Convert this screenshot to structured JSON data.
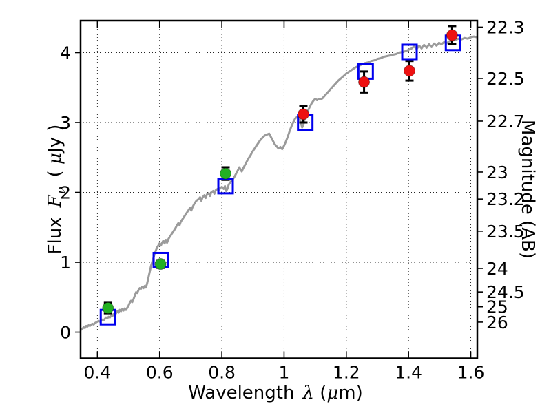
{
  "chart_data": {
    "type": "line",
    "title": "",
    "xlabel": "Wavelength λ (μm)",
    "ylabel_left": "Flux Fν ( μJy )",
    "ylabel_right": "Magnitude (AB)",
    "xlabel_parts": {
      "word": "Wavelength",
      "lambda": "λ",
      "open": "(",
      "mu": "μ",
      "close": "m)"
    },
    "ylabel_left_parts": {
      "word": "Flux",
      "f": "F",
      "nu": "ν",
      "open": "(",
      "mu": "μ",
      "close": "Jy )"
    },
    "xlim": [
      0.346,
      1.621
    ],
    "ylim": [
      -0.374,
      4.458
    ],
    "grid": true,
    "legend": "none",
    "x_ticks": [
      {
        "value": 0.4,
        "label": "0.4"
      },
      {
        "value": 0.6,
        "label": "0.6"
      },
      {
        "value": 0.8,
        "label": "0.8"
      },
      {
        "value": 1.0,
        "label": "1"
      },
      {
        "value": 1.2,
        "label": "1.2"
      },
      {
        "value": 1.4,
        "label": "1.4"
      },
      {
        "value": 1.6,
        "label": "1.6"
      }
    ],
    "y_ticks_left": [
      {
        "value": 0,
        "label": "0"
      },
      {
        "value": 1,
        "label": "1"
      },
      {
        "value": 2,
        "label": "2"
      },
      {
        "value": 3,
        "label": "3"
      },
      {
        "value": 4,
        "label": "4"
      }
    ],
    "y_ticks_right": [
      {
        "label": "22.3",
        "flux_value": 4.365
      },
      {
        "label": "22.5",
        "flux_value": 3.631
      },
      {
        "label": "22.7",
        "flux_value": 3.02
      },
      {
        "label": "23",
        "flux_value": 2.291
      },
      {
        "label": "23.2",
        "flux_value": 1.905
      },
      {
        "label": "23.5",
        "flux_value": 1.445
      },
      {
        "label": "24",
        "flux_value": 0.912
      },
      {
        "label": "24.5",
        "flux_value": 0.575
      },
      {
        "label": "25",
        "flux_value": 0.363
      },
      {
        "label": "26",
        "flux_value": 0.144
      }
    ],
    "colors": {
      "model_spectrum": "#9b9b9b",
      "model_photometry": "#0000ee",
      "observed_optical": "#22b022",
      "observed_infrared": "#ee1111",
      "errorbar": "#000000",
      "grid": "#000000"
    },
    "series": [
      {
        "name": "model-spectrum",
        "style": "line",
        "color": "#9b9b9b",
        "points": [
          [
            0.346,
            0.03
          ],
          [
            0.352,
            0.05
          ],
          [
            0.356,
            0.07
          ],
          [
            0.36,
            0.06
          ],
          [
            0.364,
            0.09
          ],
          [
            0.368,
            0.08
          ],
          [
            0.372,
            0.1
          ],
          [
            0.376,
            0.09
          ],
          [
            0.38,
            0.11
          ],
          [
            0.384,
            0.12
          ],
          [
            0.388,
            0.11
          ],
          [
            0.392,
            0.13
          ],
          [
            0.396,
            0.14
          ],
          [
            0.4,
            0.15
          ],
          [
            0.404,
            0.16
          ],
          [
            0.408,
            0.15
          ],
          [
            0.412,
            0.17
          ],
          [
            0.416,
            0.18
          ],
          [
            0.42,
            0.17
          ],
          [
            0.424,
            0.19
          ],
          [
            0.428,
            0.21
          ],
          [
            0.432,
            0.2
          ],
          [
            0.436,
            0.22
          ],
          [
            0.44,
            0.21
          ],
          [
            0.444,
            0.24
          ],
          [
            0.448,
            0.23
          ],
          [
            0.452,
            0.26
          ],
          [
            0.456,
            0.25
          ],
          [
            0.46,
            0.27
          ],
          [
            0.464,
            0.3
          ],
          [
            0.468,
            0.28
          ],
          [
            0.472,
            0.32
          ],
          [
            0.476,
            0.3
          ],
          [
            0.48,
            0.33
          ],
          [
            0.484,
            0.31
          ],
          [
            0.488,
            0.34
          ],
          [
            0.492,
            0.32
          ],
          [
            0.496,
            0.35
          ],
          [
            0.5,
            0.38
          ],
          [
            0.504,
            0.42
          ],
          [
            0.508,
            0.45
          ],
          [
            0.512,
            0.43
          ],
          [
            0.516,
            0.47
          ],
          [
            0.52,
            0.52
          ],
          [
            0.524,
            0.57
          ],
          [
            0.528,
            0.56
          ],
          [
            0.532,
            0.6
          ],
          [
            0.536,
            0.63
          ],
          [
            0.54,
            0.62
          ],
          [
            0.544,
            0.65
          ],
          [
            0.548,
            0.63
          ],
          [
            0.552,
            0.66
          ],
          [
            0.556,
            0.64
          ],
          [
            0.56,
            0.7
          ],
          [
            0.564,
            0.78
          ],
          [
            0.568,
            0.86
          ],
          [
            0.572,
            0.94
          ],
          [
            0.576,
            1.0
          ],
          [
            0.58,
            1.06
          ],
          [
            0.584,
            1.12
          ],
          [
            0.588,
            1.17
          ],
          [
            0.592,
            1.21
          ],
          [
            0.596,
            1.24
          ],
          [
            0.6,
            1.27
          ],
          [
            0.604,
            1.24
          ],
          [
            0.608,
            1.28
          ],
          [
            0.612,
            1.31
          ],
          [
            0.616,
            1.27
          ],
          [
            0.62,
            1.32
          ],
          [
            0.624,
            1.28
          ],
          [
            0.628,
            1.33
          ],
          [
            0.632,
            1.36
          ],
          [
            0.638,
            1.4
          ],
          [
            0.644,
            1.44
          ],
          [
            0.65,
            1.48
          ],
          [
            0.656,
            1.53
          ],
          [
            0.66,
            1.56
          ],
          [
            0.664,
            1.53
          ],
          [
            0.668,
            1.58
          ],
          [
            0.674,
            1.62
          ],
          [
            0.68,
            1.66
          ],
          [
            0.686,
            1.7
          ],
          [
            0.692,
            1.74
          ],
          [
            0.698,
            1.78
          ],
          [
            0.702,
            1.74
          ],
          [
            0.706,
            1.79
          ],
          [
            0.712,
            1.84
          ],
          [
            0.718,
            1.88
          ],
          [
            0.724,
            1.9
          ],
          [
            0.73,
            1.93
          ],
          [
            0.734,
            1.88
          ],
          [
            0.738,
            1.93
          ],
          [
            0.744,
            1.96
          ],
          [
            0.748,
            1.92
          ],
          [
            0.752,
            1.97
          ],
          [
            0.758,
            1.99
          ],
          [
            0.762,
            1.95
          ],
          [
            0.766,
            2.0
          ],
          [
            0.772,
            2.02
          ],
          [
            0.776,
            1.98
          ],
          [
            0.78,
            2.03
          ],
          [
            0.786,
            2.05
          ],
          [
            0.79,
            2.02
          ],
          [
            0.794,
            2.06
          ],
          [
            0.8,
            2.08
          ],
          [
            0.806,
            2.05
          ],
          [
            0.81,
            2.09
          ],
          [
            0.814,
            2.02
          ],
          [
            0.818,
            2.05
          ],
          [
            0.822,
            2.11
          ],
          [
            0.828,
            2.15
          ],
          [
            0.834,
            2.18
          ],
          [
            0.84,
            2.22
          ],
          [
            0.846,
            2.27
          ],
          [
            0.852,
            2.32
          ],
          [
            0.856,
            2.36
          ],
          [
            0.86,
            2.33
          ],
          [
            0.864,
            2.3
          ],
          [
            0.868,
            2.34
          ],
          [
            0.874,
            2.39
          ],
          [
            0.88,
            2.44
          ],
          [
            0.886,
            2.49
          ],
          [
            0.892,
            2.53
          ],
          [
            0.898,
            2.58
          ],
          [
            0.904,
            2.62
          ],
          [
            0.91,
            2.66
          ],
          [
            0.916,
            2.7
          ],
          [
            0.922,
            2.74
          ],
          [
            0.928,
            2.77
          ],
          [
            0.934,
            2.8
          ],
          [
            0.94,
            2.82
          ],
          [
            0.946,
            2.83
          ],
          [
            0.952,
            2.84
          ],
          [
            0.958,
            2.79
          ],
          [
            0.964,
            2.74
          ],
          [
            0.97,
            2.69
          ],
          [
            0.976,
            2.66
          ],
          [
            0.982,
            2.63
          ],
          [
            0.988,
            2.65
          ],
          [
            0.994,
            2.62
          ],
          [
            1.0,
            2.67
          ],
          [
            1.006,
            2.73
          ],
          [
            1.012,
            2.8
          ],
          [
            1.018,
            2.88
          ],
          [
            1.024,
            2.95
          ],
          [
            1.03,
            3.01
          ],
          [
            1.036,
            3.06
          ],
          [
            1.042,
            3.08
          ],
          [
            1.048,
            3.07
          ],
          [
            1.054,
            3.0
          ],
          [
            1.058,
            2.93
          ],
          [
            1.062,
            2.97
          ],
          [
            1.066,
            3.05
          ],
          [
            1.07,
            3.1
          ],
          [
            1.076,
            3.16
          ],
          [
            1.082,
            3.22
          ],
          [
            1.088,
            3.27
          ],
          [
            1.094,
            3.31
          ],
          [
            1.1,
            3.34
          ],
          [
            1.106,
            3.32
          ],
          [
            1.112,
            3.34
          ],
          [
            1.118,
            3.33
          ],
          [
            1.124,
            3.35
          ],
          [
            1.13,
            3.38
          ],
          [
            1.136,
            3.41
          ],
          [
            1.142,
            3.44
          ],
          [
            1.15,
            3.48
          ],
          [
            1.158,
            3.52
          ],
          [
            1.166,
            3.56
          ],
          [
            1.174,
            3.6
          ],
          [
            1.182,
            3.63
          ],
          [
            1.19,
            3.66
          ],
          [
            1.2,
            3.7
          ],
          [
            1.21,
            3.73
          ],
          [
            1.22,
            3.76
          ],
          [
            1.23,
            3.79
          ],
          [
            1.24,
            3.81
          ],
          [
            1.25,
            3.83
          ],
          [
            1.26,
            3.85
          ],
          [
            1.27,
            3.86
          ],
          [
            1.28,
            3.88
          ],
          [
            1.29,
            3.89
          ],
          [
            1.3,
            3.91
          ],
          [
            1.31,
            3.92
          ],
          [
            1.32,
            3.94
          ],
          [
            1.33,
            3.95
          ],
          [
            1.34,
            3.96
          ],
          [
            1.35,
            3.97
          ],
          [
            1.36,
            3.98
          ],
          [
            1.37,
            4.0
          ],
          [
            1.38,
            4.01
          ],
          [
            1.39,
            4.02
          ],
          [
            1.4,
            4.04
          ],
          [
            1.41,
            4.06
          ],
          [
            1.418,
            4.09
          ],
          [
            1.426,
            4.05
          ],
          [
            1.434,
            4.1
          ],
          [
            1.442,
            4.06
          ],
          [
            1.45,
            4.11
          ],
          [
            1.458,
            4.07
          ],
          [
            1.466,
            4.12
          ],
          [
            1.474,
            4.08
          ],
          [
            1.482,
            4.13
          ],
          [
            1.49,
            4.1
          ],
          [
            1.498,
            4.14
          ],
          [
            1.506,
            4.12
          ],
          [
            1.514,
            4.15
          ],
          [
            1.522,
            4.13
          ],
          [
            1.53,
            4.16
          ],
          [
            1.54,
            4.17
          ],
          [
            1.55,
            4.18
          ],
          [
            1.56,
            4.2
          ],
          [
            1.57,
            4.19
          ],
          [
            1.58,
            4.21
          ],
          [
            1.59,
            4.2
          ],
          [
            1.6,
            4.22
          ],
          [
            1.61,
            4.23
          ],
          [
            1.621,
            4.22
          ]
        ]
      },
      {
        "name": "model-photometry",
        "style": "open-square",
        "color": "#0000ee",
        "points": [
          {
            "x": 0.434,
            "y": 0.215
          },
          {
            "x": 0.604,
            "y": 1.03
          },
          {
            "x": 0.812,
            "y": 2.09
          },
          {
            "x": 1.068,
            "y": 3.0
          },
          {
            "x": 1.262,
            "y": 3.73
          },
          {
            "x": 1.403,
            "y": 4.01
          },
          {
            "x": 1.543,
            "y": 4.14
          }
        ]
      },
      {
        "name": "observed-photometry-optical",
        "style": "filled-circle",
        "color": "#22b022",
        "points": [
          {
            "x": 0.434,
            "y": 0.345,
            "yerr": 0.075
          },
          {
            "x": 0.603,
            "y": 0.975,
            "yerr": 0.055
          },
          {
            "x": 0.812,
            "y": 2.27,
            "yerr": 0.09
          }
        ]
      },
      {
        "name": "observed-photometry-infrared",
        "style": "filled-circle",
        "color": "#ee1111",
        "points": [
          {
            "x": 1.062,
            "y": 3.12,
            "yerr": 0.12
          },
          {
            "x": 1.257,
            "y": 3.58,
            "yerr": 0.15
          },
          {
            "x": 1.403,
            "y": 3.74,
            "yerr": 0.14
          },
          {
            "x": 1.54,
            "y": 4.25,
            "yerr": 0.13
          }
        ]
      }
    ]
  }
}
